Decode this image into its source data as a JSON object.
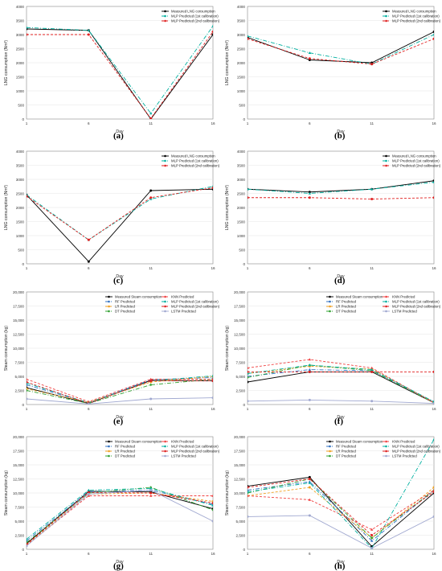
{
  "colors": {
    "measured": "#000000",
    "mlp1": "#00b0a0",
    "mlp2": "#e02020",
    "knn": "#f04040",
    "rf": "#3070c0",
    "lr": "#f0a020",
    "dt": "#30a030",
    "lstm": "#a0a8d0"
  },
  "chart_data": [
    {
      "type": "line",
      "caption": "(a)",
      "xlabel": "Day",
      "ylabel": "LNG consumption (Nm³)",
      "x": [
        1,
        6,
        11,
        16
      ],
      "xticks": [
        "1",
        "6",
        "11",
        "16"
      ],
      "ylim": [
        0,
        4000
      ],
      "yticks": [
        "0",
        "500",
        "1000",
        "1500",
        "2000",
        "2500",
        "3000",
        "3500",
        "4000"
      ],
      "legend_position": "top-right",
      "series": [
        {
          "name": "Measured LNG consumption",
          "color_key": "measured",
          "dash": "solid",
          "marker": "circle",
          "values": [
            3200,
            3150,
            0,
            3000
          ]
        },
        {
          "name": "MLP Predicted (1st calibration)",
          "color_key": "mlp1",
          "dash": "dashdot",
          "marker": "triangle",
          "values": [
            3250,
            3150,
            200,
            3300
          ]
        },
        {
          "name": "MLP Predicted (2nd calibration)",
          "color_key": "mlp2",
          "dash": "dashed",
          "marker": "circle",
          "values": [
            3000,
            3000,
            20,
            3100
          ]
        }
      ]
    },
    {
      "type": "line",
      "caption": "(b)",
      "xlabel": "Day",
      "ylabel": "LNG consumption (Nm³)",
      "x": [
        1,
        6,
        11,
        16
      ],
      "xticks": [
        "1",
        "6",
        "11",
        "16"
      ],
      "ylim": [
        0,
        4000
      ],
      "yticks": [
        "0",
        "500",
        "1000",
        "1500",
        "2000",
        "2500",
        "3000",
        "3500",
        "4000"
      ],
      "legend_position": "top-right",
      "series": [
        {
          "name": "Measured LNG consumption",
          "color_key": "measured",
          "dash": "solid",
          "marker": "circle",
          "values": [
            2900,
            2100,
            2000,
            3100
          ]
        },
        {
          "name": "MLP Predicted (1st calibration)",
          "color_key": "mlp1",
          "dash": "dashdot",
          "marker": "triangle",
          "values": [
            2950,
            2350,
            1950,
            3000
          ]
        },
        {
          "name": "MLP Predicted (2nd calibration)",
          "color_key": "mlp2",
          "dash": "dashed",
          "marker": "circle",
          "values": [
            2850,
            2150,
            1950,
            2850
          ]
        }
      ]
    },
    {
      "type": "line",
      "caption": "(c)",
      "xlabel": "Day",
      "ylabel": "LNG consumption (Nm³)",
      "x": [
        1,
        6,
        11,
        16
      ],
      "xticks": [
        "1",
        "6",
        "11",
        "16"
      ],
      "ylim": [
        0,
        4000
      ],
      "yticks": [
        "0",
        "500",
        "1000",
        "1500",
        "2000",
        "2500",
        "3000",
        "3500",
        "4000"
      ],
      "legend_position": "top-right",
      "series": [
        {
          "name": "Measured LNG consumption",
          "color_key": "measured",
          "dash": "solid",
          "marker": "circle",
          "values": [
            2450,
            80,
            2600,
            2650
          ]
        },
        {
          "name": "MLP Predicted (1st calibration)",
          "color_key": "mlp1",
          "dash": "dashdot",
          "marker": "triangle",
          "values": [
            2450,
            850,
            2300,
            2750
          ]
        },
        {
          "name": "MLP Predicted (2nd calibration)",
          "color_key": "mlp2",
          "dash": "dashed",
          "marker": "circle",
          "values": [
            2400,
            850,
            2350,
            2700
          ]
        }
      ]
    },
    {
      "type": "line",
      "caption": "(d)",
      "xlabel": "Day",
      "ylabel": "LNG consumption (Nm³)",
      "x": [
        1,
        6,
        11,
        16
      ],
      "xticks": [
        "1",
        "6",
        "11",
        "16"
      ],
      "ylim": [
        0,
        4000
      ],
      "yticks": [
        "0",
        "500",
        "1000",
        "1500",
        "2000",
        "2500",
        "3000",
        "3500",
        "4000"
      ],
      "legend_position": "top-right",
      "series": [
        {
          "name": "Measured LNG consumption",
          "color_key": "measured",
          "dash": "solid",
          "marker": "circle",
          "values": [
            2650,
            2550,
            2650,
            2950
          ]
        },
        {
          "name": "MLP Predicted (1st calibration)",
          "color_key": "mlp1",
          "dash": "dashdot",
          "marker": "triangle",
          "values": [
            2650,
            2500,
            2650,
            2900
          ]
        },
        {
          "name": "MLP Predicted (2nd calibration)",
          "color_key": "mlp2",
          "dash": "dashed",
          "marker": "circle",
          "values": [
            2350,
            2350,
            2300,
            2350
          ]
        }
      ]
    },
    {
      "type": "line",
      "caption": "(e)",
      "xlabel": "Day",
      "ylabel": "Steam consumption (kg)",
      "x": [
        1,
        6,
        11,
        16
      ],
      "xticks": [
        "1",
        "6",
        "11",
        "16"
      ],
      "ylim": [
        0,
        20000
      ],
      "yticks": [
        "0",
        "2,500",
        "5,000",
        "7,500",
        "10,000",
        "12,500",
        "15,000",
        "17,500",
        "20,000"
      ],
      "legend_position": "top",
      "series": [
        {
          "name": "Measured Steam consumption",
          "color_key": "measured",
          "dash": "solid",
          "marker": "circle",
          "values": [
            3000,
            200,
            4300,
            4200
          ]
        },
        {
          "name": "RF Predicted",
          "color_key": "rf",
          "dash": "dashdot",
          "marker": "triangle",
          "values": [
            3500,
            300,
            4400,
            4800
          ]
        },
        {
          "name": "LR Predicted",
          "color_key": "lr",
          "dash": "dashed",
          "marker": "circle",
          "values": [
            2800,
            400,
            4000,
            5000
          ]
        },
        {
          "name": "DT Predicted",
          "color_key": "dt",
          "dash": "dashdot",
          "marker": "diamond",
          "values": [
            2500,
            200,
            3500,
            4500
          ]
        },
        {
          "name": "KNN Predicted",
          "color_key": "knn",
          "dash": "dashed",
          "marker": "triangle",
          "values": [
            4500,
            500,
            4500,
            4500
          ]
        },
        {
          "name": "MLP Predicted (1st calibration)",
          "color_key": "mlp1",
          "dash": "dashdot",
          "marker": "triangle",
          "values": [
            3800,
            300,
            4200,
            5100
          ]
        },
        {
          "name": "MLP Predicted (2nd calibration)",
          "color_key": "mlp2",
          "dash": "dashed",
          "marker": "circle",
          "values": [
            4000,
            200,
            4200,
            4200
          ]
        },
        {
          "name": "LSTM Predicted",
          "color_key": "lstm",
          "dash": "solid",
          "marker": "circle",
          "values": [
            1000,
            100,
            1000,
            1200
          ]
        }
      ]
    },
    {
      "type": "line",
      "caption": "(f)",
      "xlabel": "Day",
      "ylabel": "Steam consumption (kg)",
      "x": [
        1,
        6,
        11,
        16
      ],
      "xticks": [
        "1",
        "6",
        "11",
        "16"
      ],
      "ylim": [
        0,
        20000
      ],
      "yticks": [
        "0",
        "2,500",
        "5,000",
        "7,500",
        "10,000",
        "12,500",
        "15,000",
        "17,500",
        "20,000"
      ],
      "legend_position": "top",
      "series": [
        {
          "name": "Measured Steam consumption",
          "color_key": "measured",
          "dash": "solid",
          "marker": "circle",
          "values": [
            4000,
            5800,
            5800,
            300
          ]
        },
        {
          "name": "RF Predicted",
          "color_key": "rf",
          "dash": "dashdot",
          "marker": "triangle",
          "values": [
            5000,
            6200,
            6000,
            500
          ]
        },
        {
          "name": "LR Predicted",
          "color_key": "lr",
          "dash": "dashed",
          "marker": "circle",
          "values": [
            5500,
            6800,
            6300,
            400
          ]
        },
        {
          "name": "DT Predicted",
          "color_key": "dt",
          "dash": "dashdot",
          "marker": "diamond",
          "values": [
            4800,
            7000,
            6000,
            300
          ]
        },
        {
          "name": "KNN Predicted",
          "color_key": "knn",
          "dash": "dashed",
          "marker": "triangle",
          "values": [
            6500,
            8000,
            6500,
            300
          ]
        },
        {
          "name": "MLP Predicted (1st calibration)",
          "color_key": "mlp1",
          "dash": "dashdot",
          "marker": "triangle",
          "values": [
            5500,
            7000,
            6200,
            500
          ]
        },
        {
          "name": "MLP Predicted (2nd calibration)",
          "color_key": "mlp2",
          "dash": "dashed",
          "marker": "circle",
          "values": [
            5800,
            5800,
            5800,
            5800
          ]
        },
        {
          "name": "LSTM Predicted",
          "color_key": "lstm",
          "dash": "solid",
          "marker": "circle",
          "values": [
            600,
            800,
            600,
            200
          ]
        }
      ]
    },
    {
      "type": "line",
      "caption": "(g)",
      "xlabel": "Day",
      "ylabel": "Steam consumption (kg)",
      "x": [
        1,
        6,
        11,
        16
      ],
      "xticks": [
        "1",
        "6",
        "11",
        "16"
      ],
      "ylim": [
        0,
        20000
      ],
      "yticks": [
        "0",
        "2,500",
        "5,000",
        "7,500",
        "10,000",
        "12,500",
        "15,000",
        "17,500",
        "20,000"
      ],
      "legend_position": "top",
      "series": [
        {
          "name": "Measured Steam consumption",
          "color_key": "measured",
          "dash": "solid",
          "marker": "circle",
          "values": [
            1000,
            10300,
            10200,
            7200
          ]
        },
        {
          "name": "RF Predicted",
          "color_key": "rf",
          "dash": "dashdot",
          "marker": "triangle",
          "values": [
            1500,
            10200,
            10500,
            8000
          ]
        },
        {
          "name": "LR Predicted",
          "color_key": "lr",
          "dash": "dashed",
          "marker": "circle",
          "values": [
            800,
            9800,
            10000,
            8500
          ]
        },
        {
          "name": "DT Predicted",
          "color_key": "dt",
          "dash": "dashdot",
          "marker": "diamond",
          "values": [
            1200,
            10000,
            11000,
            7000
          ]
        },
        {
          "name": "KNN Predicted",
          "color_key": "knn",
          "dash": "dashed",
          "marker": "triangle",
          "values": [
            700,
            9500,
            9500,
            9500
          ]
        },
        {
          "name": "MLP Predicted (1st calibration)",
          "color_key": "mlp1",
          "dash": "dashdot",
          "marker": "triangle",
          "values": [
            1800,
            10500,
            10800,
            7800
          ]
        },
        {
          "name": "MLP Predicted (2nd calibration)",
          "color_key": "mlp2",
          "dash": "dashed",
          "marker": "circle",
          "values": [
            900,
            10100,
            10000,
            8200
          ]
        },
        {
          "name": "LSTM Predicted",
          "color_key": "lstm",
          "dash": "solid",
          "marker": "circle",
          "values": [
            600,
            9800,
            10500,
            5000
          ]
        }
      ]
    },
    {
      "type": "line",
      "caption": "(h)",
      "xlabel": "Day",
      "ylabel": "Steam consumption (kg)",
      "x": [
        1,
        6,
        11,
        16
      ],
      "xticks": [
        "1",
        "6",
        "11",
        "16"
      ],
      "ylim": [
        0,
        20000
      ],
      "yticks": [
        "0",
        "2,500",
        "5,000",
        "7,500",
        "10,000",
        "12,500",
        "15,000",
        "17,500",
        "20,000"
      ],
      "legend_position": "top",
      "series": [
        {
          "name": "Measured Steam consumption",
          "color_key": "measured",
          "dash": "solid",
          "marker": "circle",
          "values": [
            11200,
            12800,
            500,
            10000
          ]
        },
        {
          "name": "RF Predicted",
          "color_key": "rf",
          "dash": "dashdot",
          "marker": "triangle",
          "values": [
            10500,
            12000,
            1500,
            10500
          ]
        },
        {
          "name": "LR Predicted",
          "color_key": "lr",
          "dash": "dashed",
          "marker": "circle",
          "values": [
            9500,
            11000,
            2000,
            11000
          ]
        },
        {
          "name": "DT Predicted",
          "color_key": "dt",
          "dash": "dashdot",
          "marker": "diamond",
          "values": [
            10000,
            12500,
            2000,
            10500
          ]
        },
        {
          "name": "KNN Predicted",
          "color_key": "knn",
          "dash": "dashed",
          "marker": "triangle",
          "values": [
            9500,
            8800,
            3500,
            10500
          ]
        },
        {
          "name": "MLP Predicted (1st calibration)",
          "color_key": "mlp1",
          "dash": "dashdot",
          "marker": "triangle",
          "values": [
            10200,
            11800,
            200,
            19500
          ]
        },
        {
          "name": "MLP Predicted (2nd calibration)",
          "color_key": "mlp2",
          "dash": "dashed",
          "marker": "circle",
          "values": [
            11000,
            12500,
            2500,
            10200
          ]
        },
        {
          "name": "LSTM Predicted",
          "color_key": "lstm",
          "dash": "solid",
          "marker": "circle",
          "values": [
            5800,
            6000,
            200,
            5800
          ]
        }
      ]
    }
  ]
}
